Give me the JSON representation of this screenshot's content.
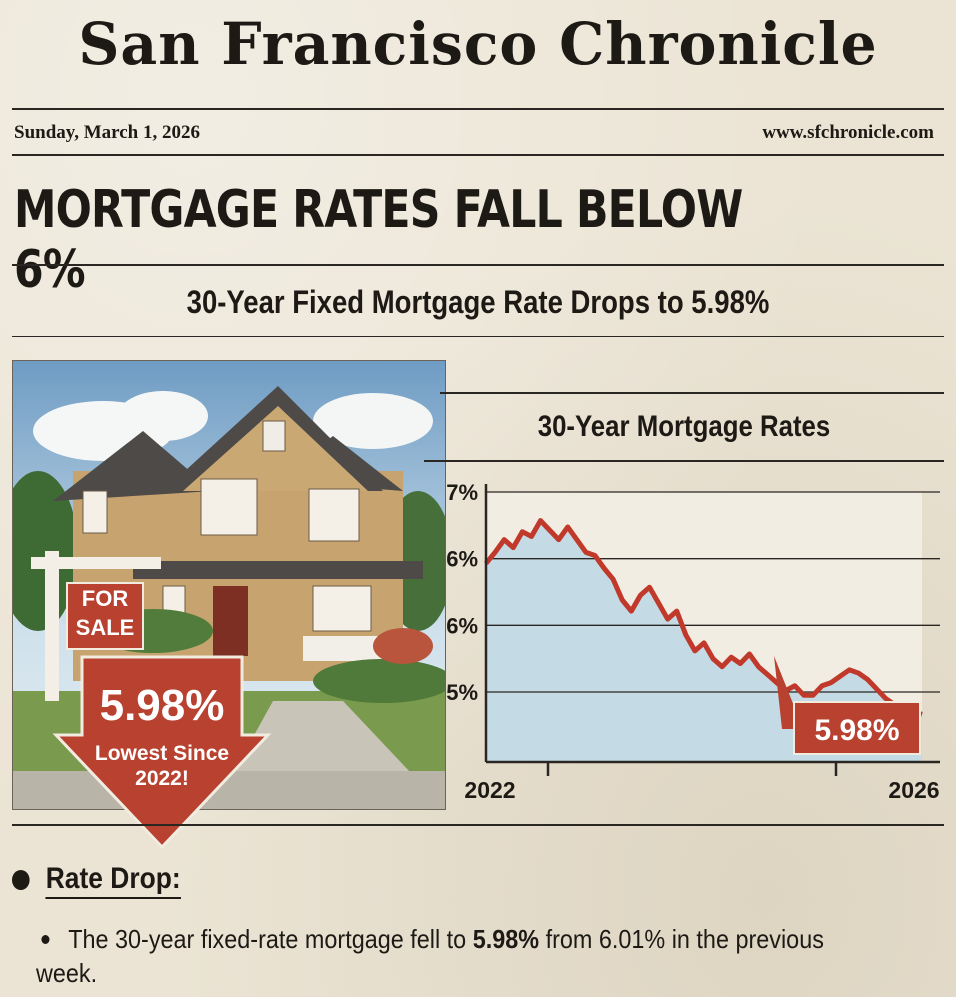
{
  "masthead": "San Francisco Chronicle",
  "date": "Sunday, March 1, 2026",
  "website": "www.sfchronicle.com",
  "headline": "MORTGAGE RATES FALL BELOW 6%",
  "subhead": {
    "prefix": "30-Year Fixed Mortgage Rate Drops to",
    "value": "5.98%"
  },
  "image": {
    "sign_line1": "FOR",
    "sign_line2": "SALE",
    "badge_value": "5.98%",
    "badge_line1": "Lowest Since",
    "badge_line2": "2022!"
  },
  "section": {
    "title": "Rate Drop:",
    "bullet_prefix": "The 30-year fixed-rate mortgage fell to",
    "bullet_value": "5.98%",
    "bullet_suffix": "from 6.01% in the previous week."
  },
  "colors": {
    "accent_red": "#b8412f",
    "line_red": "#c0392b",
    "area_blue": "#bcd7e6",
    "ink": "#1d1a16",
    "paper": "#ebe4d4"
  },
  "chart_data": {
    "type": "area",
    "title": "30-Year Mortgage Rates",
    "y_tick_labels": [
      "7%",
      "6%",
      "6%",
      "5%"
    ],
    "x_tick_labels": [
      "2022",
      "2026"
    ],
    "annotation": "5.98%",
    "grid": true,
    "series": [
      {
        "x": [
          0,
          1,
          2,
          3,
          4,
          5,
          6,
          7,
          8,
          9,
          10,
          11,
          12,
          13,
          14,
          15,
          16,
          17,
          18,
          19,
          20,
          21,
          22,
          23,
          24,
          25,
          26,
          27,
          28,
          29,
          30,
          31,
          32,
          33,
          34,
          35,
          36,
          37,
          38,
          39,
          40,
          41,
          42,
          43,
          44,
          45,
          46,
          47,
          48
        ],
        "values": [
          6.55,
          6.62,
          6.7,
          6.65,
          6.75,
          6.72,
          6.82,
          6.76,
          6.7,
          6.78,
          6.7,
          6.62,
          6.6,
          6.52,
          6.45,
          6.32,
          6.25,
          6.35,
          6.4,
          6.3,
          6.2,
          6.25,
          6.1,
          6.0,
          6.05,
          5.95,
          5.9,
          5.96,
          5.92,
          5.98,
          5.9,
          5.85,
          5.8,
          5.75,
          5.78,
          5.72,
          5.72,
          5.78,
          5.8,
          5.84,
          5.88,
          5.86,
          5.82,
          5.76,
          5.7,
          5.66,
          5.64,
          5.62,
          5.6
        ]
      }
    ],
    "ylim": [
      5.3,
      7.0
    ]
  }
}
